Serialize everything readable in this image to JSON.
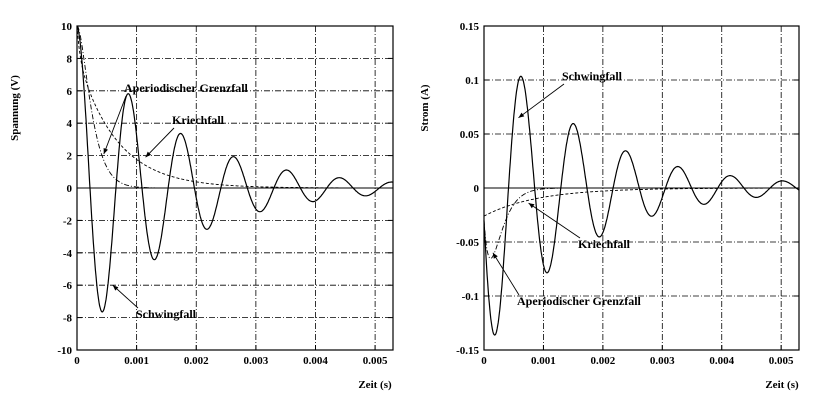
{
  "chart_data": [
    {
      "type": "line",
      "title": "",
      "xlabel": "Zeit (s)",
      "ylabel": "Spannung (V)",
      "xlim": [
        0,
        0.0053
      ],
      "ylim": [
        -10,
        10
      ],
      "xticks": [
        0,
        0.001,
        0.002,
        0.003,
        0.004,
        0.005
      ],
      "xtick_labels": [
        "0",
        "0.001",
        "0.002",
        "0.003",
        "0.004",
        "0.005"
      ],
      "yticks": [
        -10,
        -8,
        -6,
        -4,
        -2,
        0,
        2,
        4,
        6,
        8,
        10
      ],
      "ytick_labels": [
        "-10",
        "-8",
        "-6",
        "-4",
        "-2",
        "0",
        "2",
        "4",
        "6",
        "8",
        "10"
      ],
      "grid": true,
      "series": [
        {
          "name": "Schwingfall",
          "style": "solid",
          "x": [
            0,
            0.00044,
            0.00088,
            0.00132,
            0.00176,
            0.0022,
            0.00264,
            0.00308,
            0.00352,
            0.00396,
            0.0044,
            0.00484,
            0.00528
          ],
          "y": [
            10,
            -7.3,
            5.3,
            -3.9,
            2.8,
            -2.1,
            1.5,
            -1.1,
            0.8,
            -0.6,
            0.4,
            -0.3,
            0.2
          ]
        },
        {
          "name": "Aperiodischer Grenzfall",
          "style": "dash-dot",
          "x": [
            0,
            0.0001,
            0.0002,
            0.0003,
            0.0004,
            0.0005,
            0.0006,
            0.0008,
            0.001,
            0.0014,
            0.002,
            0.0053
          ],
          "y": [
            10,
            8.1,
            5.9,
            4.0,
            2.6,
            1.6,
            1.0,
            0.4,
            0.1,
            0.02,
            0,
            0
          ]
        },
        {
          "name": "Kriechfall",
          "style": "dashed",
          "x": [
            0,
            0.0002,
            0.0004,
            0.0006,
            0.0008,
            0.001,
            0.0014,
            0.002,
            0.003,
            0.004,
            0.0053
          ],
          "y": [
            10,
            6.5,
            4.6,
            3.4,
            2.5,
            1.9,
            1.1,
            0.45,
            0.1,
            0.02,
            0
          ]
        }
      ],
      "annotations": [
        {
          "text": "Aperiodischer Grenzfall",
          "target_x": 0.00045,
          "target_y": 2.1
        },
        {
          "text": "Kriechfall",
          "target_x": 0.00115,
          "target_y": 1.9
        },
        {
          "text": "Schwingfall",
          "target_x": 0.0006,
          "target_y": -6.0
        }
      ]
    },
    {
      "type": "line",
      "title": "",
      "xlabel": "Zeit (s)",
      "ylabel": "Strom (A)",
      "xlim": [
        0,
        0.0053
      ],
      "ylim": [
        -0.15,
        0.15
      ],
      "xticks": [
        0,
        0.001,
        0.002,
        0.003,
        0.004,
        0.005
      ],
      "xtick_labels": [
        "0",
        "0.001",
        "0.002",
        "0.003",
        "0.004",
        "0.005"
      ],
      "yticks": [
        -0.15,
        -0.1,
        -0.05,
        0,
        0.05,
        0.1,
        0.15
      ],
      "ytick_labels": [
        "-0.15",
        "-0.1",
        "-0.05",
        "0",
        "0.05",
        "0.1",
        "0.15"
      ],
      "grid": true,
      "series": [
        {
          "name": "Schwingfall",
          "style": "solid",
          "x": [
            0,
            0.00022,
            0.00066,
            0.0011,
            0.00154,
            0.00198,
            0.00242,
            0.00286,
            0.0033,
            0.00374,
            0.00418,
            0.00462,
            0.00506,
            0.0053
          ],
          "y": [
            -0.03,
            -0.135,
            0.098,
            -0.072,
            0.052,
            -0.038,
            0.027,
            -0.02,
            0.015,
            -0.011,
            0.008,
            -0.006,
            0.004,
            0.002
          ]
        },
        {
          "name": "Aperiodischer Grenzfall",
          "style": "dash-dot",
          "x": [
            0,
            0.0001,
            0.0002,
            0.0003,
            0.0004,
            0.0005,
            0.0006,
            0.0008,
            0.001,
            0.0014,
            0.002,
            0.0053
          ],
          "y": [
            -0.03,
            -0.058,
            -0.065,
            -0.058,
            -0.046,
            -0.034,
            -0.024,
            -0.011,
            -0.005,
            -0.001,
            0,
            0
          ]
        },
        {
          "name": "Kriechfall",
          "style": "dashed",
          "x": [
            0,
            0.0002,
            0.0004,
            0.0006,
            0.0008,
            0.001,
            0.0014,
            0.002,
            0.003,
            0.004,
            0.0053
          ],
          "y": [
            -0.025,
            -0.022,
            -0.018,
            -0.015,
            -0.012,
            -0.01,
            -0.007,
            -0.004,
            -0.0015,
            -0.0005,
            0
          ]
        }
      ],
      "annotations": [
        {
          "text": "Schwingfall",
          "target_x": 0.00058,
          "target_y": 0.065
        },
        {
          "text": "Kriechfall",
          "target_x": 0.00075,
          "target_y": -0.014
        },
        {
          "text": "Aperiodischer Grenzfall",
          "target_x": 0.00015,
          "target_y": -0.06
        }
      ]
    }
  ]
}
